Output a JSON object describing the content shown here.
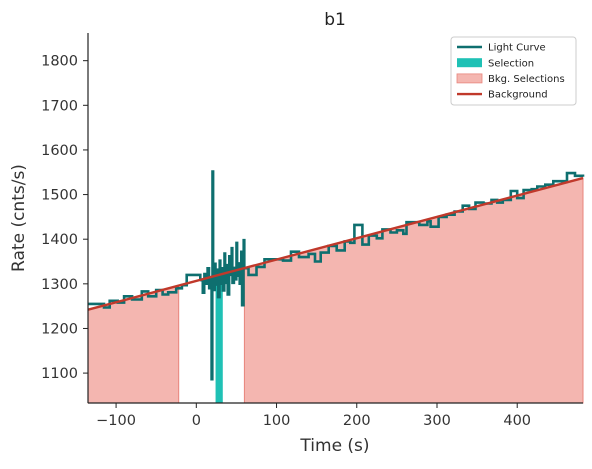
{
  "chart_data": {
    "type": "line",
    "title": "b1",
    "xlabel": "Time (s)",
    "ylabel": "Rate (cnts/s)",
    "xlim": [
      -135,
      482
    ],
    "ylim": [
      1033,
      1862
    ],
    "xticks": [
      -100,
      0,
      100,
      200,
      300,
      400
    ],
    "yticks": [
      1100,
      1200,
      1300,
      1400,
      1500,
      1600,
      1700,
      1800
    ],
    "xtick_labels": [
      "−100",
      "0",
      "100",
      "200",
      "300",
      "400"
    ],
    "ytick_labels": [
      "1100",
      "1200",
      "1300",
      "1400",
      "1500",
      "1600",
      "1700",
      "1800"
    ],
    "grid": false,
    "legend_position": "top-right",
    "legend": [
      {
        "label": "Light Curve",
        "kind": "line",
        "color": "#0e6f6f"
      },
      {
        "label": "Selection",
        "kind": "patch",
        "color": "#1fc1b5"
      },
      {
        "label": "Bkg. Selections",
        "kind": "patch",
        "color": "#f4b6b0"
      },
      {
        "label": "Background",
        "kind": "line",
        "color": "#c0392b"
      }
    ],
    "colors": {
      "light_curve": "#0e6f6f",
      "selection": "#1fc1b5",
      "bkg_selection_fill": "#f4b6b0",
      "bkg_selection_edge": "#e8857c",
      "background": "#c0392b",
      "axis": "#222222"
    },
    "background_model": {
      "type": "linear",
      "points": [
        [
          -135,
          1242
        ],
        [
          482,
          1537
        ]
      ]
    },
    "bkg_selections": [
      [
        -135,
        -22
      ],
      [
        60,
        482
      ]
    ],
    "selection": [
      24,
      33
    ],
    "light_curve": {
      "coarse": [
        [
          -135,
          1255
        ],
        [
          -115,
          1247
        ],
        [
          -108,
          1262
        ],
        [
          -98,
          1258
        ],
        [
          -90,
          1272
        ],
        [
          -80,
          1265
        ],
        [
          -68,
          1283
        ],
        [
          -60,
          1272
        ],
        [
          -50,
          1286
        ],
        [
          -42,
          1276
        ],
        [
          -35,
          1281
        ],
        [
          -25,
          1290
        ],
        [
          -18,
          1297
        ],
        [
          -12,
          1320
        ],
        [
          5,
          1308
        ],
        [
          60,
          1335
        ],
        [
          65,
          1320
        ],
        [
          75,
          1338
        ],
        [
          85,
          1355
        ],
        [
          100,
          1355
        ],
        [
          108,
          1352
        ],
        [
          118,
          1372
        ],
        [
          128,
          1360
        ],
        [
          140,
          1367
        ],
        [
          148,
          1350
        ],
        [
          155,
          1370
        ],
        [
          165,
          1385
        ],
        [
          175,
          1375
        ],
        [
          185,
          1395
        ],
        [
          192,
          1392
        ],
        [
          197,
          1432
        ],
        [
          207,
          1388
        ],
        [
          215,
          1408
        ],
        [
          225,
          1402
        ],
        [
          232,
          1422
        ],
        [
          242,
          1415
        ],
        [
          250,
          1420
        ],
        [
          258,
          1412
        ],
        [
          262,
          1438
        ],
        [
          278,
          1432
        ],
        [
          288,
          1440
        ],
        [
          292,
          1428
        ],
        [
          302,
          1450
        ],
        [
          312,
          1455
        ],
        [
          322,
          1462
        ],
        [
          332,
          1475
        ],
        [
          340,
          1468
        ],
        [
          348,
          1482
        ],
        [
          358,
          1480
        ],
        [
          368,
          1488
        ],
        [
          375,
          1482
        ],
        [
          382,
          1488
        ],
        [
          392,
          1508
        ],
        [
          400,
          1492
        ],
        [
          408,
          1510
        ],
        [
          418,
          1512
        ],
        [
          425,
          1518
        ],
        [
          435,
          1522
        ],
        [
          445,
          1530
        ],
        [
          455,
          1530
        ],
        [
          462,
          1548
        ],
        [
          472,
          1542
        ],
        [
          482,
          1540
        ]
      ],
      "fine": [
        [
          5,
          1308
        ],
        [
          8,
          1280
        ],
        [
          10,
          1322
        ],
        [
          12,
          1300
        ],
        [
          14,
          1335
        ],
        [
          16,
          1290
        ],
        [
          18,
          1312
        ],
        [
          19,
          1086
        ],
        [
          20,
          1552
        ],
        [
          21,
          1286
        ],
        [
          23,
          1345
        ],
        [
          24,
          1298
        ],
        [
          26,
          1332
        ],
        [
          27,
          1270
        ],
        [
          29,
          1352
        ],
        [
          30,
          1300
        ],
        [
          32,
          1335
        ],
        [
          33,
          1285
        ],
        [
          35,
          1368
        ],
        [
          36,
          1302
        ],
        [
          38,
          1342
        ],
        [
          39,
          1276
        ],
        [
          41,
          1362
        ],
        [
          42,
          1320
        ],
        [
          44,
          1380
        ],
        [
          45,
          1302
        ],
        [
          47,
          1336
        ],
        [
          48,
          1310
        ],
        [
          50,
          1392
        ],
        [
          51,
          1318
        ],
        [
          53,
          1346
        ],
        [
          54,
          1300
        ],
        [
          56,
          1372
        ],
        [
          57,
          1252
        ],
        [
          59,
          1398
        ],
        [
          60,
          1335
        ]
      ]
    }
  }
}
